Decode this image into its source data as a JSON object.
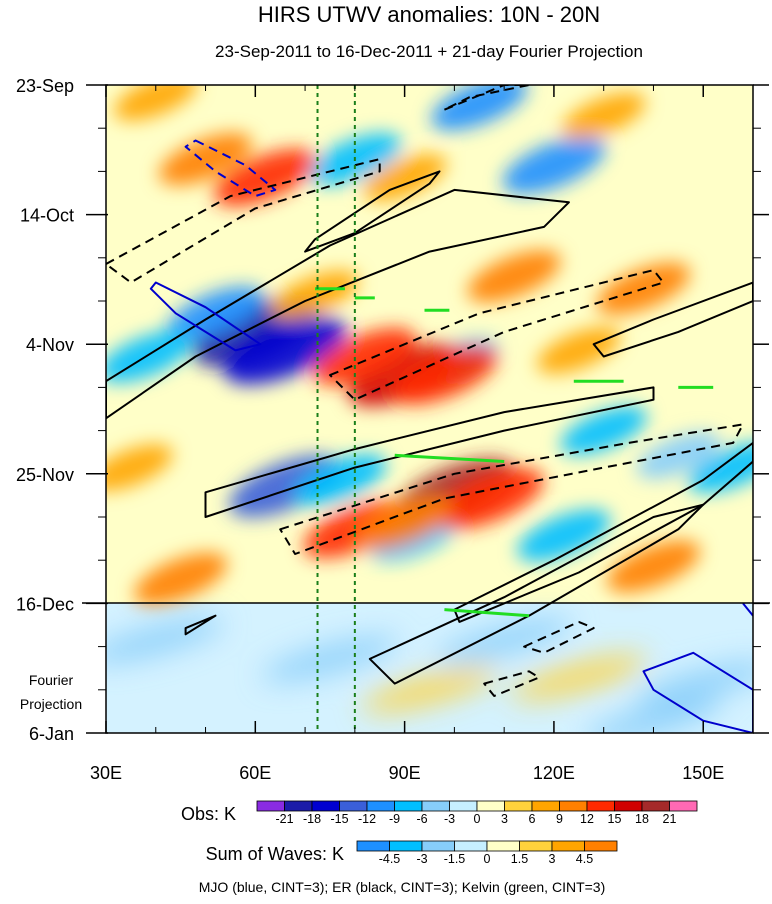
{
  "chart_data": {
    "type": "heatmap",
    "title": "HIRS UTWV anomalies: 10N - 20N",
    "subtitle": "23-Sep-2011 to 16-Dec-2011 + 21-day Fourier Projection",
    "x_range": [
      30,
      160
    ],
    "x_ticks": [
      {
        "value": 30,
        "label": "30E"
      },
      {
        "value": 60,
        "label": "60E"
      },
      {
        "value": 90,
        "label": "90E"
      },
      {
        "value": 120,
        "label": "120E"
      },
      {
        "value": 150,
        "label": "150E"
      }
    ],
    "y_range_days": [
      0,
      105
    ],
    "y_ticks": [
      {
        "day": 0,
        "label": "23-Sep"
      },
      {
        "day": 21,
        "label": "14-Oct"
      },
      {
        "day": 42,
        "label": "4-Nov"
      },
      {
        "day": 63,
        "label": "25-Nov"
      },
      {
        "day": 84,
        "label": "16-Dec"
      },
      {
        "day": 105,
        "label": "6-Jan"
      }
    ],
    "forecast_start_day": 84,
    "forecast_label": [
      "Fourier",
      "Projection"
    ],
    "reference_longitudes": [
      72.5,
      80
    ],
    "obs_legend": {
      "label": "Obs: K",
      "levels": [
        "-21",
        "-18",
        "-15",
        "-12",
        "-9",
        "-6",
        "-3",
        "0",
        "3",
        "6",
        "9",
        "12",
        "15",
        "18",
        "21"
      ],
      "colors": [
        "#8a2be2",
        "#1c1ca8",
        "#0000d0",
        "#3a5fd9",
        "#1e90ff",
        "#00bfff",
        "#87cefa",
        "#c6efff",
        "#ffffc8",
        "#ffd23c",
        "#ffa500",
        "#ff8000",
        "#ff2a00",
        "#d00000",
        "#a52a2a",
        "#ff69b4"
      ]
    },
    "waves_legend": {
      "label": "Sum of Waves: K",
      "levels": [
        "-4.5",
        "-3",
        "-1.5",
        "0",
        "1.5",
        "3",
        "4.5"
      ],
      "colors": [
        "#1e90ff",
        "#00bfff",
        "#87cefa",
        "#c6efff",
        "#ffffc8",
        "#ffd23c",
        "#ffa500",
        "#ff8000"
      ]
    },
    "contour_note": "MJO (blue, CINT=3); ER (black, CINT=3); Kelvin (green, CINT=3)",
    "series_colors": {
      "MJO": "#0000cc",
      "ER": "#000000",
      "Kelvin": "#22dd22"
    },
    "anomaly_blobs": [
      {
        "lon": 60,
        "day": 40,
        "value": -19
      },
      {
        "lon": 66,
        "day": 43,
        "value": -18
      },
      {
        "lon": 52,
        "day": 37,
        "value": -10
      },
      {
        "lon": 66,
        "day": 65,
        "value": -15
      },
      {
        "lon": 77,
        "day": 64,
        "value": -9
      },
      {
        "lon": 80,
        "day": 12,
        "value": -9
      },
      {
        "lon": 120,
        "day": 13,
        "value": -12
      },
      {
        "lon": 105,
        "day": 3,
        "value": -10
      },
      {
        "lon": 122,
        "day": 73,
        "value": -9
      },
      {
        "lon": 130,
        "day": 56,
        "value": -7
      },
      {
        "lon": 92,
        "day": 73,
        "value": -8
      },
      {
        "lon": 38,
        "day": 44,
        "value": -9
      },
      {
        "lon": 145,
        "day": 60,
        "value": -6
      },
      {
        "lon": 156,
        "day": 62,
        "value": -8
      },
      {
        "lon": 100,
        "day": 45,
        "value": -7
      },
      {
        "lon": 62,
        "day": 15,
        "value": 12
      },
      {
        "lon": 50,
        "day": 12,
        "value": 9
      },
      {
        "lon": 72,
        "day": 34,
        "value": 7
      },
      {
        "lon": 90,
        "day": 47,
        "value": 15
      },
      {
        "lon": 82,
        "day": 44,
        "value": 12
      },
      {
        "lon": 98,
        "day": 47,
        "value": 13
      },
      {
        "lon": 100,
        "day": 66,
        "value": 18
      },
      {
        "lon": 107,
        "day": 67,
        "value": 14
      },
      {
        "lon": 80,
        "day": 72,
        "value": 12
      },
      {
        "lon": 90,
        "day": 71,
        "value": 10
      },
      {
        "lon": 112,
        "day": 31,
        "value": 9
      },
      {
        "lon": 138,
        "day": 33,
        "value": 9
      },
      {
        "lon": 140,
        "day": 78,
        "value": 9
      },
      {
        "lon": 45,
        "day": 80,
        "value": 9
      },
      {
        "lon": 125,
        "day": 43,
        "value": 6
      },
      {
        "lon": 40,
        "day": 2,
        "value": 6
      },
      {
        "lon": 130,
        "day": 5,
        "value": 6
      },
      {
        "lon": 90,
        "day": 15,
        "value": 6
      },
      {
        "lon": 35,
        "day": 62,
        "value": 6
      }
    ],
    "forecast_blobs": [
      {
        "lon": 40,
        "day": 90,
        "value": -2
      },
      {
        "lon": 75,
        "day": 93,
        "value": -2
      },
      {
        "lon": 110,
        "day": 90,
        "value": -2
      },
      {
        "lon": 150,
        "day": 97,
        "value": -2
      },
      {
        "lon": 140,
        "day": 103,
        "value": -1.6
      },
      {
        "lon": 125,
        "day": 96,
        "value": 1.8
      },
      {
        "lon": 95,
        "day": 98,
        "value": 1.6
      }
    ],
    "contours": [
      {
        "wave": "ER",
        "dashed": false,
        "points": [
          [
            30,
            48
          ],
          [
            50,
            38
          ],
          [
            75,
            26
          ],
          [
            100,
            17
          ],
          [
            123,
            19
          ],
          [
            118,
            23
          ],
          [
            95,
            27
          ],
          [
            70,
            35
          ],
          [
            48,
            44
          ],
          [
            30,
            54
          ]
        ]
      },
      {
        "wave": "ER",
        "dashed": false,
        "points": [
          [
            72,
            25
          ],
          [
            87,
            17
          ],
          [
            97,
            14
          ],
          [
            95,
            16
          ],
          [
            80,
            24
          ],
          [
            70,
            27
          ]
        ]
      },
      {
        "wave": "ER",
        "dashed": false,
        "points": [
          [
            50,
            66
          ],
          [
            80,
            59
          ],
          [
            110,
            53
          ],
          [
            140,
            49
          ],
          [
            140,
            51
          ],
          [
            110,
            56
          ],
          [
            80,
            62
          ],
          [
            50,
            70
          ]
        ]
      },
      {
        "wave": "ER",
        "dashed": false,
        "points": [
          [
            100,
            85
          ],
          [
            120,
            77
          ],
          [
            150,
            64
          ],
          [
            160,
            58
          ],
          [
            160,
            61
          ],
          [
            150,
            68
          ],
          [
            125,
            79
          ],
          [
            101,
            87
          ]
        ]
      },
      {
        "wave": "ER",
        "dashed": false,
        "points": [
          [
            83,
            93
          ],
          [
            110,
            83
          ],
          [
            140,
            70
          ],
          [
            150,
            68
          ],
          [
            145,
            72
          ],
          [
            115,
            86
          ],
          [
            88,
            97
          ]
        ]
      },
      {
        "wave": "ER",
        "dashed": false,
        "points": [
          [
            128,
            42
          ],
          [
            140,
            38
          ],
          [
            160,
            32
          ],
          [
            160,
            35
          ],
          [
            145,
            40
          ],
          [
            130,
            44
          ]
        ]
      },
      {
        "wave": "ER",
        "dashed": true,
        "points": [
          [
            30,
            29
          ],
          [
            55,
            18
          ],
          [
            85,
            12
          ],
          [
            85,
            14
          ],
          [
            60,
            20
          ],
          [
            35,
            32
          ]
        ]
      },
      {
        "wave": "ER",
        "dashed": true,
        "points": [
          [
            75,
            47
          ],
          [
            105,
            37
          ],
          [
            140,
            30
          ],
          [
            142,
            32
          ],
          [
            110,
            40
          ],
          [
            80,
            51
          ]
        ]
      },
      {
        "wave": "ER",
        "dashed": true,
        "points": [
          [
            65,
            72
          ],
          [
            100,
            63
          ],
          [
            135,
            58
          ],
          [
            158,
            55
          ],
          [
            156,
            58
          ],
          [
            130,
            62
          ],
          [
            98,
            67
          ],
          [
            68,
            76
          ]
        ]
      },
      {
        "wave": "ER",
        "dashed": true,
        "points": [
          [
            98,
            4
          ],
          [
            110,
            0
          ],
          [
            115,
            0
          ],
          [
            103,
            2
          ]
        ]
      },
      {
        "wave": "ER",
        "dashed": true,
        "points": [
          [
            114,
            91
          ],
          [
            125,
            87
          ],
          [
            128,
            88
          ],
          [
            118,
            92
          ]
        ]
      },
      {
        "wave": "ER",
        "dashed": true,
        "points": [
          [
            106,
            97
          ],
          [
            115,
            95
          ],
          [
            117,
            96
          ],
          [
            108,
            99
          ]
        ]
      },
      {
        "wave": "ER",
        "dashed": false,
        "points": [
          [
            46,
            88
          ],
          [
            52,
            86
          ],
          [
            50,
            87
          ],
          [
            46,
            89
          ]
        ]
      },
      {
        "wave": "MJO",
        "dashed": true,
        "points": [
          [
            48,
            9
          ],
          [
            58,
            13
          ],
          [
            64,
            17
          ],
          [
            60,
            18
          ],
          [
            52,
            14
          ],
          [
            46,
            10
          ]
        ]
      },
      {
        "wave": "MJO",
        "dashed": false,
        "points": [
          [
            40,
            32
          ],
          [
            50,
            36
          ],
          [
            61,
            42
          ],
          [
            56,
            43
          ],
          [
            44,
            37
          ],
          [
            39,
            33
          ]
        ]
      },
      {
        "wave": "MJO",
        "dashed": false,
        "points": [
          [
            138,
            95
          ],
          [
            148,
            92
          ],
          [
            160,
            98
          ],
          [
            160,
            105
          ],
          [
            150,
            103
          ],
          [
            140,
            98
          ]
        ]
      },
      {
        "wave": "MJO",
        "dashed": false,
        "points": [
          [
            158,
            84
          ],
          [
            160,
            86
          ]
        ]
      },
      {
        "wave": "Kelvin",
        "dashed": false,
        "points": [
          [
            80,
            34.5
          ],
          [
            84,
            34.5
          ]
        ]
      },
      {
        "wave": "Kelvin",
        "dashed": false,
        "points": [
          [
            94,
            36.5
          ],
          [
            99,
            36.5
          ]
        ]
      },
      {
        "wave": "Kelvin",
        "dashed": false,
        "points": [
          [
            88,
            60
          ],
          [
            110,
            61
          ]
        ]
      },
      {
        "wave": "Kelvin",
        "dashed": false,
        "points": [
          [
            124,
            48
          ],
          [
            134,
            48
          ]
        ]
      },
      {
        "wave": "Kelvin",
        "dashed": false,
        "points": [
          [
            145,
            49
          ],
          [
            152,
            49
          ]
        ]
      },
      {
        "wave": "Kelvin",
        "dashed": false,
        "points": [
          [
            98,
            85
          ],
          [
            115,
            86
          ]
        ]
      },
      {
        "wave": "Kelvin",
        "dashed": false,
        "points": [
          [
            72,
            33
          ],
          [
            78,
            33
          ]
        ]
      }
    ]
  }
}
